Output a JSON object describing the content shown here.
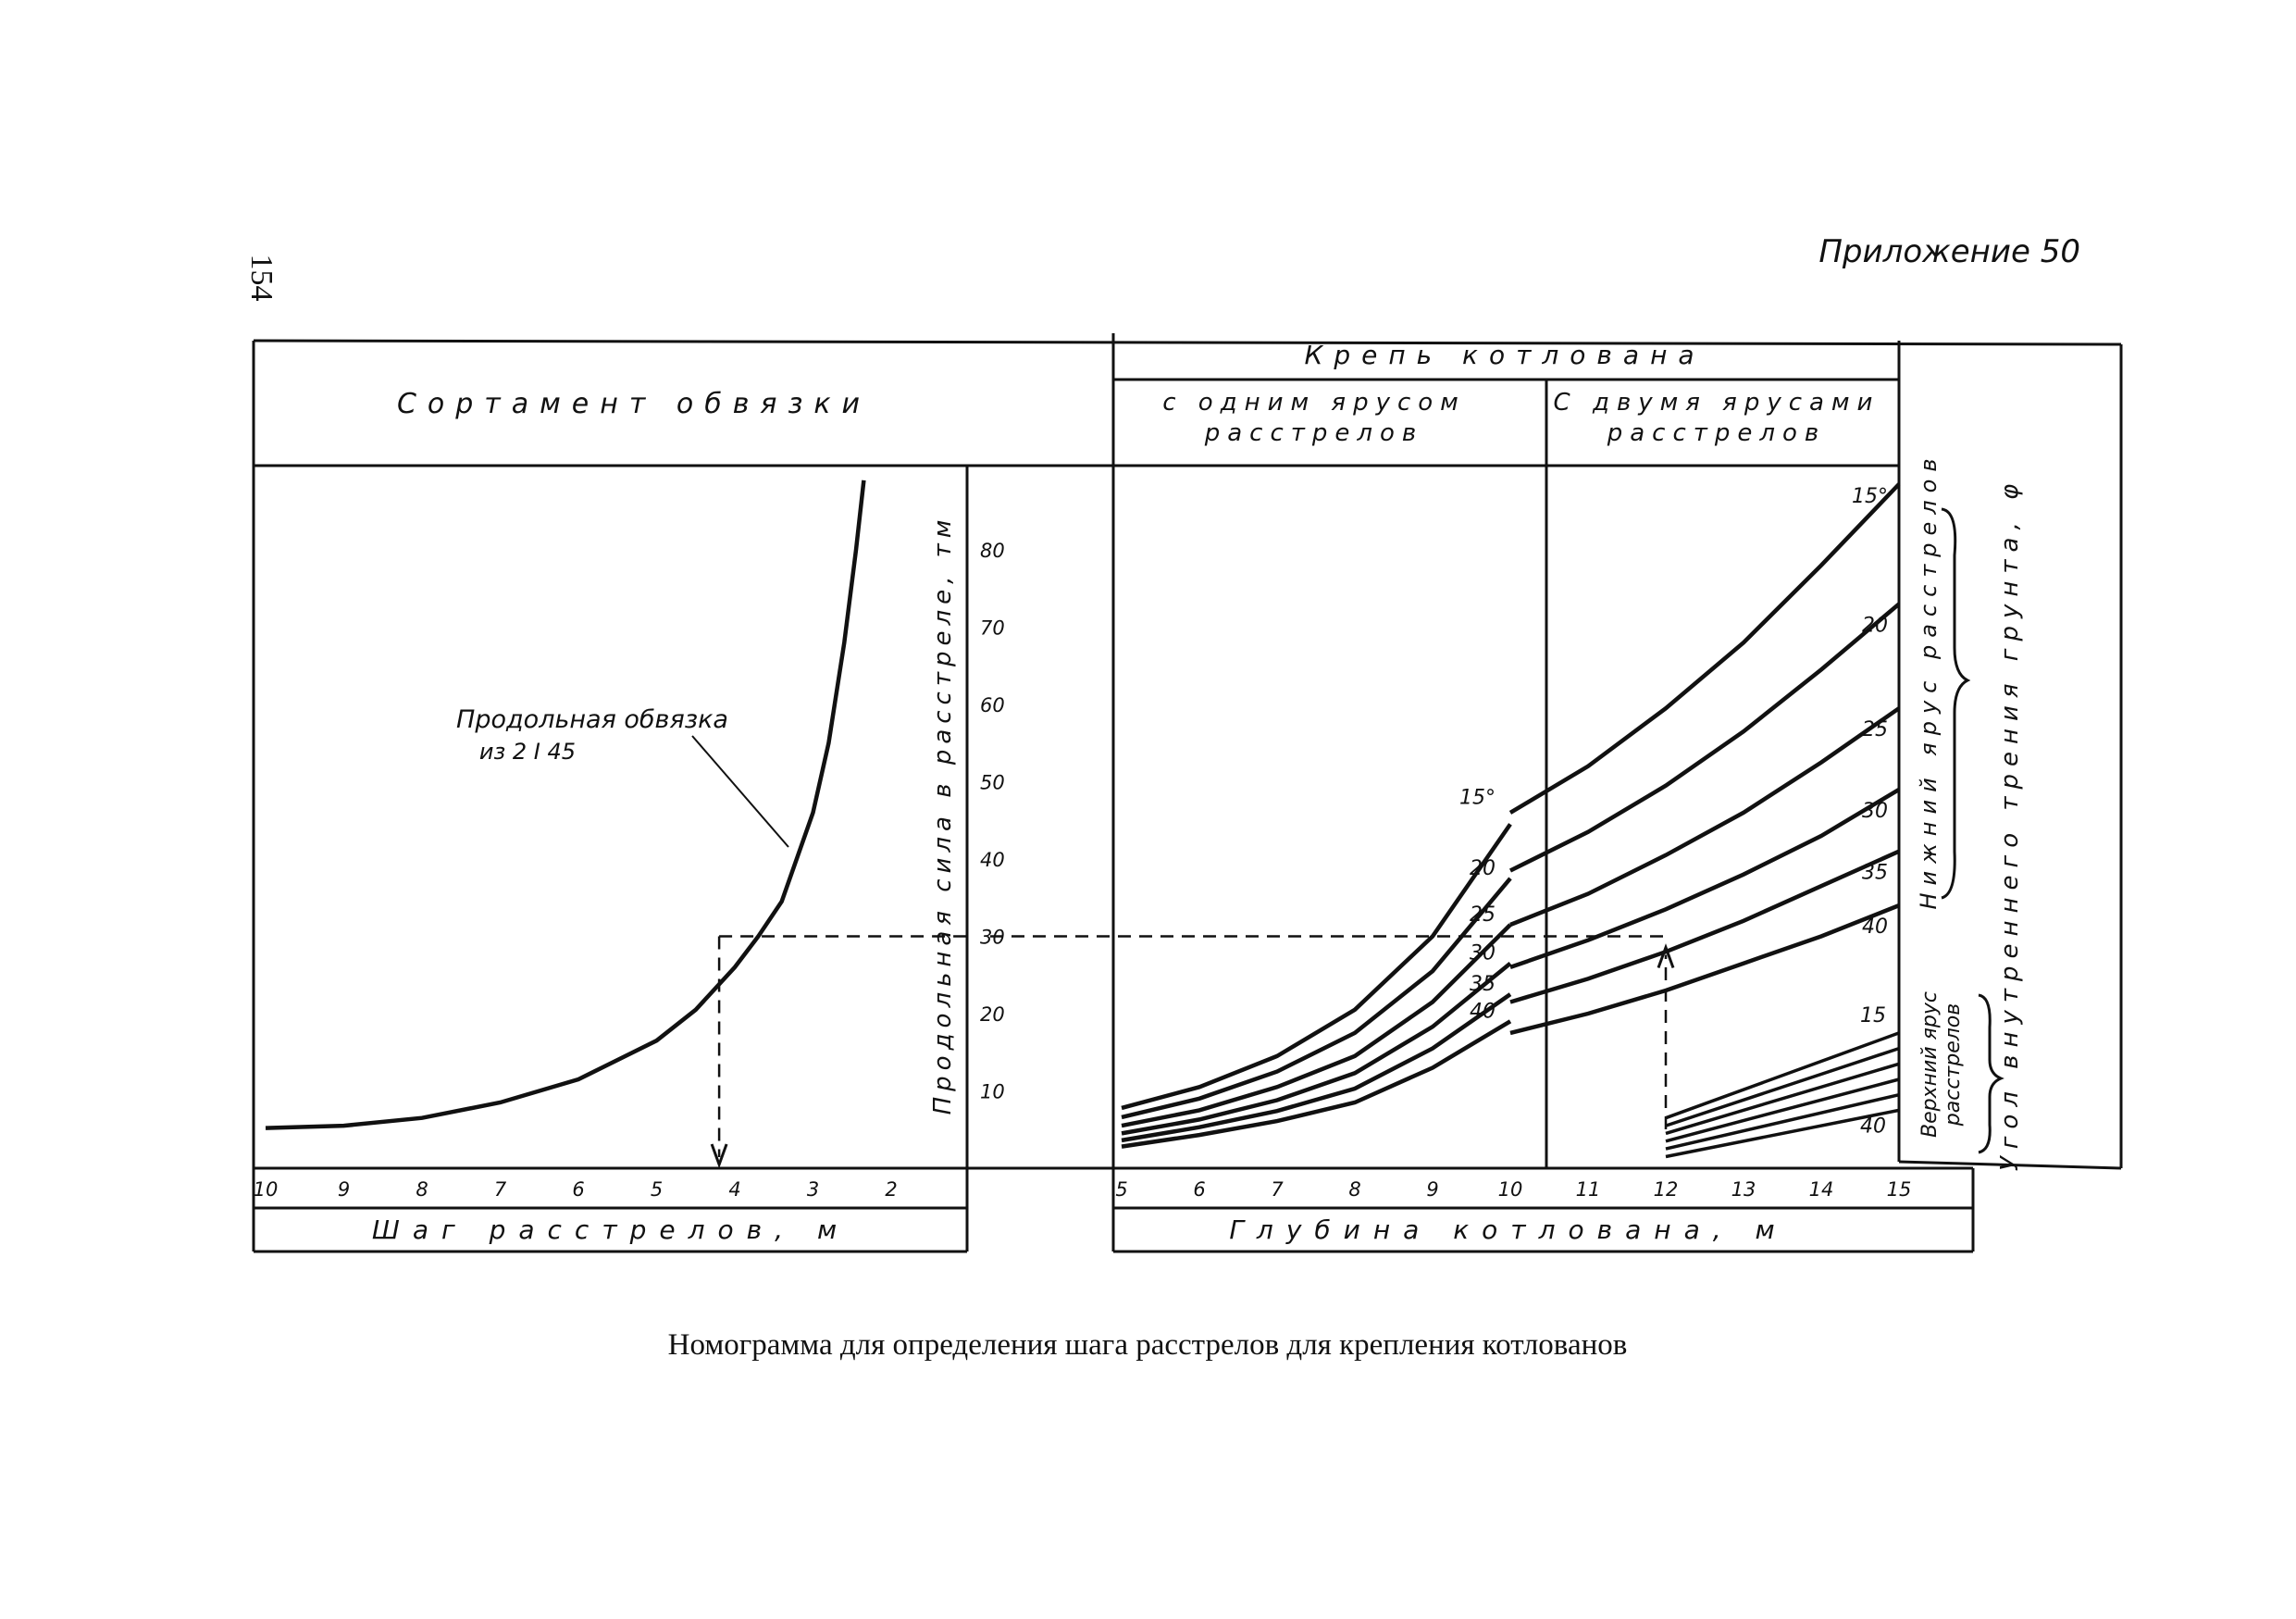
{
  "page": {
    "page_number": "154",
    "appendix": "Приложение 50",
    "caption": "Номограмма для определения шага расстрелов для крепления котлованов"
  },
  "headers": {
    "left": "Сортамент обвязки",
    "krep": "Крепь котлована",
    "one_tier": [
      "с одним ярусом",
      "расстрелов"
    ],
    "two_tiers": [
      "С двумя ярусами",
      "расстрелов"
    ]
  },
  "labels": {
    "force_axis": "Продольная сила в расстреле, тм",
    "step_axis": "Шаг расстрелов, м",
    "depth_axis": "Глубина котлована, м",
    "lower_tier": "Нижний ярус расстрелов",
    "upper_tier": [
      "Верхний ярус",
      "расстрелов"
    ],
    "friction_angle": "Угол внутреннего трения грунта, φ",
    "girder_annotation": [
      "Продольная обвязка",
      "из 2 I 45"
    ]
  },
  "chart_data": [
    {
      "type": "line",
      "name_printed": "Продольная обвязка из 2 I 45",
      "x_label": "Шаг расстрелов, м",
      "x_ticks": [
        "10",
        "9",
        "8",
        "7",
        "6",
        "5",
        "4",
        "3",
        "2"
      ],
      "x_range": [
        10,
        1.4
      ],
      "y_label": "Продольная сила в расстреле, тм",
      "y_ticks": [
        "80",
        "70",
        "60",
        "50",
        "40",
        "30",
        "20",
        "10"
      ],
      "y_range": [
        0,
        90
      ],
      "curve": {
        "x": [
          10,
          9,
          8,
          7,
          6,
          5,
          4.5,
          4,
          3.7,
          3.4,
          3.0,
          2.8,
          2.6,
          2.45,
          2.35
        ],
        "y": [
          5.2,
          5.5,
          6.5,
          8.5,
          11.5,
          16.5,
          20.5,
          26,
          30,
          34.5,
          46,
          55,
          68,
          80,
          89
        ]
      },
      "example": {
        "force": 30,
        "step": 4.2
      }
    },
    {
      "type": "line",
      "x_label": "Глубина котлована, м",
      "x_ticks": [
        "5",
        "6",
        "7",
        "8",
        "9",
        "10",
        "11",
        "12",
        "13",
        "14",
        "15"
      ],
      "x_range": [
        5,
        15
      ],
      "y_range": [
        0,
        90
      ],
      "one_tier": {
        "x": [
          5,
          6,
          7,
          8,
          9,
          10
        ],
        "series": [
          {
            "name": "15°",
            "values": [
              7.8,
              10.5,
              14.5,
              20.5,
              30,
              44.5
            ]
          },
          {
            "name": "20",
            "values": [
              6.6,
              9.0,
              12.5,
              17.5,
              25.5,
              37.5
            ]
          },
          {
            "name": "25",
            "values": [
              5.5,
              7.5,
              10.5,
              14.5,
              21.5,
              31.5
            ]
          },
          {
            "name": "30",
            "values": [
              4.5,
              6.3,
              8.8,
              12.3,
              18.3,
              26.5
            ]
          },
          {
            "name": "35",
            "values": [
              3.6,
              5.3,
              7.4,
              10.3,
              15.5,
              22.5
            ]
          },
          {
            "name": "40",
            "values": [
              2.8,
              4.3,
              6.1,
              8.5,
              13.0,
              19.0
            ]
          }
        ]
      },
      "two_tiers_lower": {
        "x": [
          10,
          11,
          12,
          13,
          14,
          15
        ],
        "series": [
          {
            "name": "15°",
            "values": [
              46,
              52,
              59.5,
              68,
              78,
              88.5
            ]
          },
          {
            "name": "20",
            "values": [
              38.5,
              43.5,
              49.5,
              56.5,
              64.5,
              73
            ]
          },
          {
            "name": "25",
            "values": [
              31.5,
              35.5,
              40.5,
              46,
              52.5,
              59.5
            ]
          },
          {
            "name": "30",
            "values": [
              26,
              29.5,
              33.5,
              38,
              43,
              49
            ]
          },
          {
            "name": "35",
            "values": [
              21.5,
              24.5,
              28,
              32,
              36.5,
              41
            ]
          },
          {
            "name": "40",
            "values": [
              17.5,
              20,
              23,
              26.5,
              30,
              34
            ]
          }
        ]
      },
      "two_tiers_upper": {
        "x": [
          12,
          15
        ],
        "series": [
          {
            "name": "15",
            "values": [
              6.5,
              17.5
            ]
          },
          {
            "name": "",
            "values": [
              5.5,
              15.5
            ]
          },
          {
            "name": "",
            "values": [
              4.5,
              13.5
            ]
          },
          {
            "name": "",
            "values": [
              3.5,
              11.5
            ]
          },
          {
            "name": "",
            "values": [
              2.5,
              9.5
            ]
          },
          {
            "name": "40",
            "values": [
              1.5,
              7.5
            ]
          }
        ]
      },
      "example": {
        "force": 30,
        "depth": 12
      }
    }
  ]
}
